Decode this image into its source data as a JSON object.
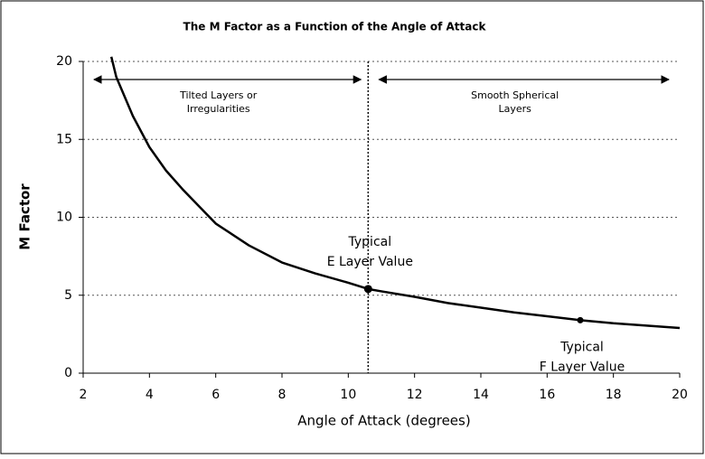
{
  "chart_data": {
    "type": "line",
    "title": "The M Factor as a Function of the Angle of Attack",
    "xlabel": "Angle of Attack (degrees)",
    "ylabel": "M Factor",
    "series": [
      {
        "name": "M Factor",
        "color": "#000000",
        "x": [
          2.85,
          3,
          3.5,
          4,
          4.5,
          5,
          6,
          7,
          8,
          9,
          10,
          10.6,
          11,
          12,
          13,
          14,
          15,
          16,
          17,
          18,
          19,
          20
        ],
        "values": [
          20.3,
          19,
          16.5,
          14.5,
          13,
          11.8,
          9.6,
          8.2,
          7.1,
          6.4,
          5.8,
          5.4,
          5.25,
          4.9,
          4.5,
          4.2,
          3.9,
          3.65,
          3.4,
          3.2,
          3.05,
          2.9
        ]
      }
    ],
    "xlim": [
      2,
      20
    ],
    "xticks": [
      2,
      4,
      6,
      8,
      10,
      12,
      14,
      16,
      18,
      20
    ],
    "ylim": [
      0,
      20
    ],
    "yticks": [
      0,
      5,
      10,
      15,
      20
    ],
    "grid": true,
    "divider_x": 10.6,
    "regions": [
      [
        "Tilted Layers or",
        "Irregularities"
      ],
      [
        "Smooth Spherical",
        "Layers"
      ]
    ],
    "markers": [
      {
        "x": 10.6,
        "y": 5.4,
        "label": [
          "Typical",
          "E Layer Value"
        ]
      },
      {
        "x": 17,
        "y": 3.4,
        "label": [
          "Typical",
          "F Layer Value"
        ]
      }
    ]
  }
}
